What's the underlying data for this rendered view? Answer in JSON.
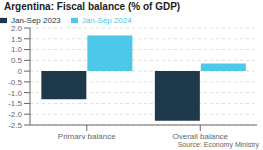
{
  "chart_data": {
    "type": "bar",
    "title": "Argentina: Fiscal balance (% of GDP)",
    "categories": [
      "Primary balance",
      "Overall balance"
    ],
    "series": [
      {
        "name": "Jan-Sep 2023",
        "color": "#1e3a4a",
        "values": [
          -1.3,
          -2.3
        ]
      },
      {
        "name": "Jan-Sep 2024",
        "color": "#4dc8e8",
        "values": [
          1.65,
          0.35
        ]
      }
    ],
    "ylim": [
      -2.5,
      2.0
    ],
    "yticks": [
      -2.5,
      {
        "value": -2.0,
        "label": "-2.0"
      },
      -1.5,
      {
        "value": -1.0,
        "label": "-1.0"
      },
      -0.5,
      0,
      0.5,
      {
        "value": 1.0,
        "label": "1.0"
      },
      1.5,
      {
        "value": 2.0,
        "label": "2.0"
      }
    ],
    "grid": true,
    "legend": "upper left",
    "annotations": [
      "Source: Economy Ministry"
    ]
  }
}
